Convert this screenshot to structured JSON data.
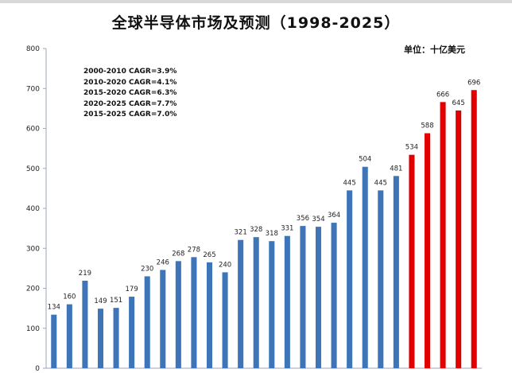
{
  "chart_data": {
    "type": "bar",
    "title": "全球半导体市场及预测（1998-2025）",
    "unit": "单位：十亿美元",
    "ylim": [
      0,
      800
    ],
    "yticks": [
      0,
      100,
      200,
      300,
      400,
      500,
      600,
      700,
      800
    ],
    "grid": false,
    "values": [
      134,
      160,
      219,
      149,
      151,
      179,
      230,
      246,
      268,
      278,
      265,
      240,
      321,
      328,
      318,
      331,
      356,
      354,
      364,
      445,
      504,
      445,
      481,
      534,
      588,
      666,
      645,
      696
    ],
    "actual_color": "#3e74b8",
    "forecast_color": "#e00000",
    "forecast_start_index": 23,
    "annotations": [
      "2000-2010  CAGR=3.9%",
      "2010-2020  CAGR=4.1%",
      "2015-2020  CAGR=6.3%",
      "2020-2025  CAGR=7.7%",
      "2015-2025  CAGR=7.0%"
    ]
  }
}
